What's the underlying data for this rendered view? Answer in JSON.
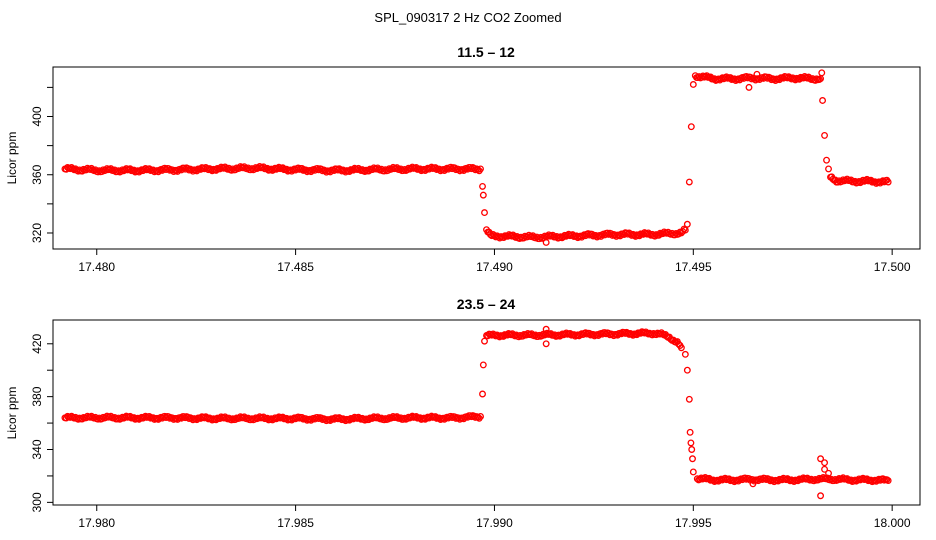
{
  "figure": {
    "title": "SPL_090317  2 Hz CO2 Zoomed"
  },
  "chart_data": [
    {
      "type": "scatter",
      "title": "11.5 – 12",
      "xlabel": "",
      "ylabel": "Licor ppm",
      "xlim": [
        17.4789,
        17.5007
      ],
      "ylim": [
        309,
        434
      ],
      "xticks": [
        "17.480",
        "17.485",
        "17.490",
        "17.495",
        "17.500"
      ],
      "xtick_values": [
        17.48,
        17.485,
        17.49,
        17.495,
        17.5
      ],
      "yticks": [
        "320",
        "360",
        "400"
      ],
      "ytick_values": [
        320,
        340,
        360,
        380,
        400,
        420
      ],
      "grid": false,
      "marker_color": "#ff0000",
      "series": [
        {
          "points": [
            [
              17.4792,
              364
            ],
            [
              17.48,
              363
            ],
            [
              17.481,
              363
            ],
            [
              17.482,
              363.5
            ],
            [
              17.483,
              364
            ],
            [
              17.484,
              364.5
            ],
            [
              17.485,
              363.5
            ],
            [
              17.486,
              363
            ],
            [
              17.487,
              363.5
            ],
            [
              17.488,
              364
            ],
            [
              17.489,
              364
            ],
            [
              17.48965,
              364
            ],
            [
              17.4897,
              352
            ],
            [
              17.48972,
              346
            ],
            [
              17.48975,
              334
            ],
            [
              17.4898,
              322
            ],
            [
              17.4899,
              318
            ],
            [
              17.4905,
              317.5
            ],
            [
              17.491,
              317
            ],
            [
              17.4915,
              317.5
            ],
            [
              17.492,
              318
            ],
            [
              17.493,
              319
            ],
            [
              17.494,
              319
            ],
            [
              17.4947,
              320
            ],
            [
              17.4948,
              322
            ],
            [
              17.49485,
              326
            ],
            [
              17.4949,
              355
            ],
            [
              17.49495,
              393
            ],
            [
              17.495,
              422
            ],
            [
              17.49505,
              428
            ],
            [
              17.4955,
              426
            ],
            [
              17.496,
              426
            ],
            [
              17.4965,
              426.5
            ],
            [
              17.497,
              426
            ],
            [
              17.4975,
              426.5
            ],
            [
              17.498,
              426
            ],
            [
              17.4982,
              426
            ],
            [
              17.49825,
              411
            ],
            [
              17.4983,
              387
            ],
            [
              17.49835,
              370
            ],
            [
              17.4984,
              364
            ],
            [
              17.49845,
              358
            ],
            [
              17.4986,
              356
            ],
            [
              17.499,
              355.5
            ],
            [
              17.4995,
              355.5
            ],
            [
              17.4999,
              355
            ]
          ],
          "outliers": [
            [
              17.4964,
              420
            ],
            [
              17.4913,
              313.5
            ],
            [
              17.4966,
              429
            ],
            [
              17.49823,
              430
            ],
            [
              17.4979,
              427
            ]
          ]
        }
      ]
    },
    {
      "type": "scatter",
      "title": "23.5 – 24",
      "xlabel": "",
      "ylabel": "Licor ppm",
      "xlim": [
        17.9789,
        18.0007
      ],
      "ylim": [
        298,
        438
      ],
      "xticks": [
        "17.980",
        "17.985",
        "17.990",
        "17.995",
        "18.000"
      ],
      "xtick_values": [
        17.98,
        17.985,
        17.99,
        17.995,
        18.0
      ],
      "yticks": [
        "300",
        "340",
        "380",
        "420"
      ],
      "ytick_values": [
        300,
        320,
        340,
        360,
        380,
        400,
        420
      ],
      "grid": false,
      "marker_color": "#ff0000",
      "series": [
        {
          "points": [
            [
              17.9792,
              364
            ],
            [
              17.98,
              364
            ],
            [
              17.981,
              364
            ],
            [
              17.982,
              364
            ],
            [
              17.983,
              363.5
            ],
            [
              17.984,
              363.5
            ],
            [
              17.985,
              363.5
            ],
            [
              17.986,
              363
            ],
            [
              17.987,
              363.5
            ],
            [
              17.988,
              364
            ],
            [
              17.989,
              364
            ],
            [
              17.98965,
              365
            ],
            [
              17.9897,
              382
            ],
            [
              17.98972,
              404
            ],
            [
              17.98975,
              422
            ],
            [
              17.9898,
              426
            ],
            [
              17.99,
              426.5
            ],
            [
              17.991,
              426.5
            ],
            [
              17.992,
              427
            ],
            [
              17.993,
              427.5
            ],
            [
              17.994,
              428
            ],
            [
              17.9942,
              427
            ],
            [
              17.9944,
              425
            ],
            [
              17.9946,
              421
            ],
            [
              17.9947,
              417
            ],
            [
              17.9948,
              412
            ],
            [
              17.99485,
              400
            ],
            [
              17.9949,
              378
            ],
            [
              17.99492,
              353
            ],
            [
              17.99494,
              345
            ],
            [
              17.99496,
              340
            ],
            [
              17.99498,
              333
            ],
            [
              17.995,
              323
            ],
            [
              17.9951,
              318
            ],
            [
              17.9955,
              317
            ],
            [
              17.996,
              317
            ],
            [
              17.9965,
              317.5
            ],
            [
              17.997,
              317
            ],
            [
              17.9975,
              317
            ],
            [
              17.998,
              317.5
            ],
            [
              17.9985,
              317.5
            ],
            [
              17.999,
              317
            ],
            [
              17.9995,
              317
            ],
            [
              17.9999,
              316.5
            ]
          ],
          "outliers": [
            [
              17.9913,
              420
            ],
            [
              17.9913,
              431
            ],
            [
              17.9965,
              314
            ],
            [
              17.9982,
              305
            ],
            [
              17.9982,
              333
            ],
            [
              17.9983,
              330
            ],
            [
              17.9983,
              325
            ],
            [
              17.9984,
              322
            ]
          ]
        }
      ]
    }
  ]
}
